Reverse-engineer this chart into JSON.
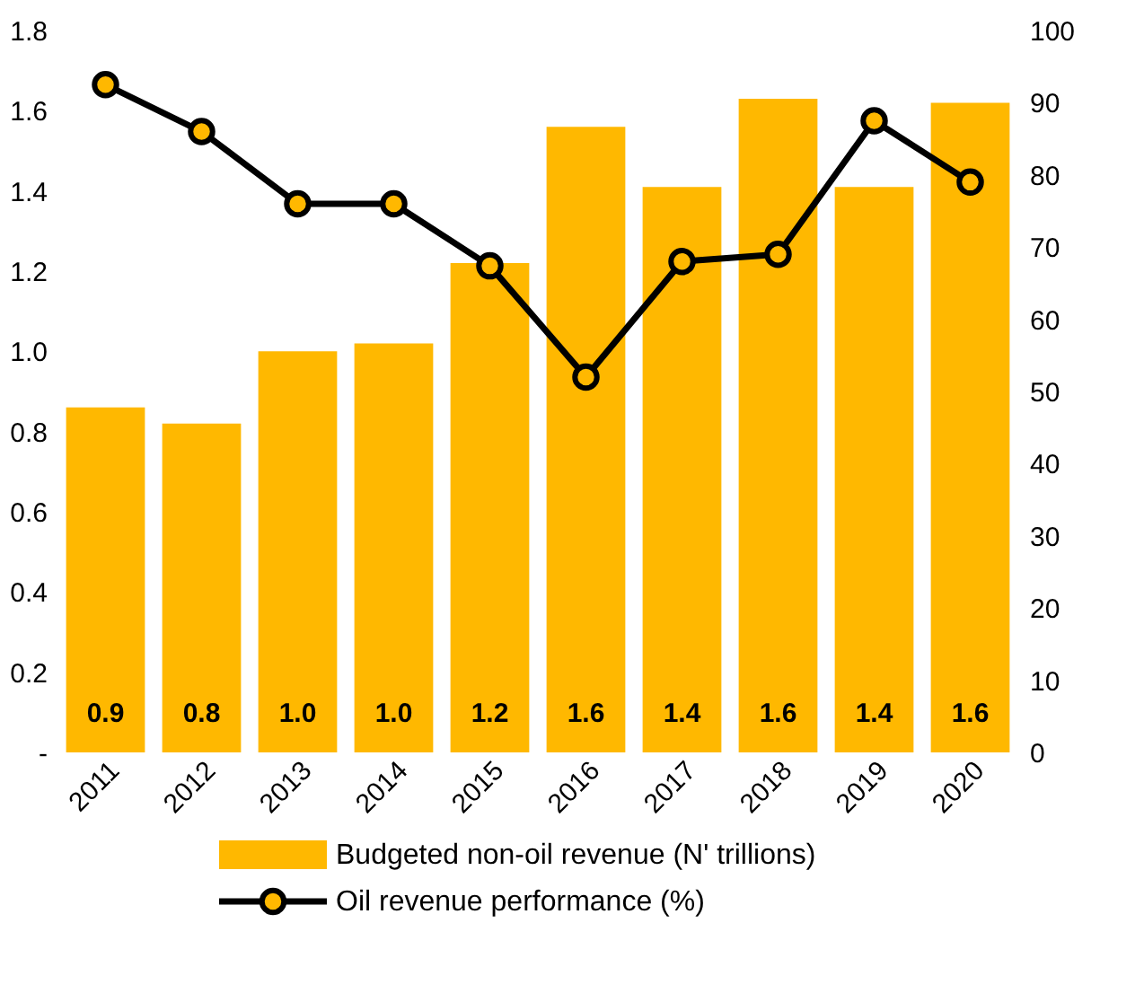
{
  "chart_data": {
    "type": "bar",
    "categories": [
      "2011",
      "2012",
      "2013",
      "2014",
      "2015",
      "2016",
      "2017",
      "2018",
      "2019",
      "2020"
    ],
    "series": [
      {
        "name": "Budgeted non-oil revenue (N' trillions)",
        "color": "#ffb800",
        "values": [
          0.86,
          0.82,
          1.0,
          1.02,
          1.22,
          1.56,
          1.41,
          1.63,
          1.41,
          1.62
        ],
        "value_labels": [
          "0.9",
          "0.8",
          "1.0",
          "1.0",
          "1.2",
          "1.6",
          "1.4",
          "1.6",
          "1.4",
          "1.6"
        ]
      },
      {
        "name": "Oil revenue performance (%)",
        "type": "line",
        "axis": "y2",
        "color": "#000000",
        "values": [
          92.5,
          86,
          76,
          76,
          67.4,
          52,
          68,
          69,
          87.5,
          79
        ]
      }
    ],
    "ylim": [
      0,
      1.8
    ],
    "yticks": [
      {
        "value": 0,
        "label": "-"
      },
      {
        "value": 0.2,
        "label": "0.2"
      },
      {
        "value": 0.4,
        "label": "0.4"
      },
      {
        "value": 0.6,
        "label": "0.6"
      },
      {
        "value": 0.8,
        "label": "0.8"
      },
      {
        "value": 1.0,
        "label": "1.0"
      },
      {
        "value": 1.2,
        "label": "1.2"
      },
      {
        "value": 1.4,
        "label": "1.4"
      },
      {
        "value": 1.6,
        "label": "1.6"
      },
      {
        "value": 1.8,
        "label": "1.8"
      }
    ],
    "y2lim": [
      0,
      100
    ],
    "y2ticks": [
      0,
      10,
      20,
      30,
      40,
      50,
      60,
      70,
      80,
      90,
      100
    ],
    "grid": false,
    "legend": "bottom",
    "marker": "circle",
    "line_style": "solid"
  }
}
